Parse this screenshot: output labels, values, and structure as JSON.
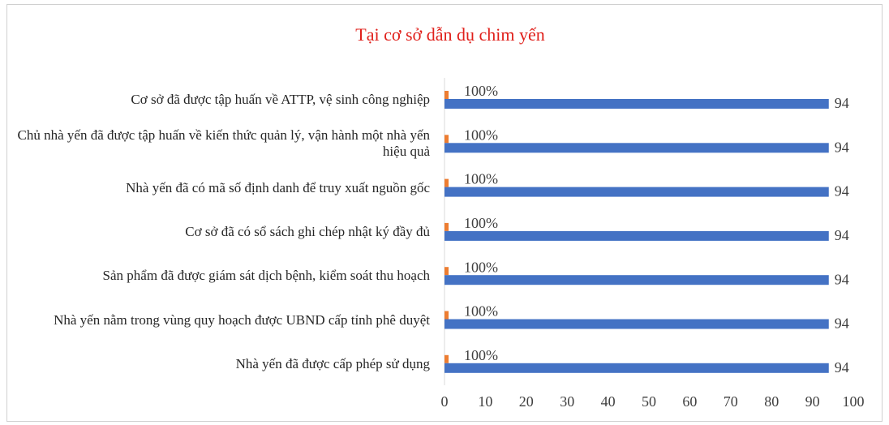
{
  "chart_data": {
    "type": "bar",
    "orientation": "horizontal",
    "title": "Tại cơ sở dẫn dụ chim yến",
    "categories": [
      "Cơ sở đã được tập huấn về ATTP, vệ sinh công nghiệp",
      "Chủ nhà yến đã được tập huấn về kiến thức quản lý, vận hành một nhà yến hiệu quả",
      "Nhà yến đã có mã số định danh để truy xuất nguồn gốc",
      "Cơ sở đã có sổ sách ghi chép nhật ký đầy đủ",
      "Sản phẩm đã được giám sát dịch bệnh, kiểm soát thu hoạch",
      "Nhà yến nằm trong vùng quy hoạch được UBND cấp tỉnh phê duyệt",
      "Nhà yến đã được cấp phép sử dụng"
    ],
    "series": [
      {
        "color": "#ed7d31",
        "values": [
          1,
          1,
          1,
          1,
          1,
          1,
          1
        ],
        "value_labels": [
          "100%",
          "100%",
          "100%",
          "100%",
          "100%",
          "100%",
          "100%"
        ]
      },
      {
        "color": "#4472c4",
        "values": [
          94,
          94,
          94,
          94,
          94,
          94,
          94
        ]
      }
    ],
    "xlim": [
      0,
      100
    ],
    "xticks": [
      0,
      10,
      20,
      30,
      40,
      50,
      60,
      70,
      80,
      90,
      100
    ],
    "title_color": "#e0201b"
  }
}
